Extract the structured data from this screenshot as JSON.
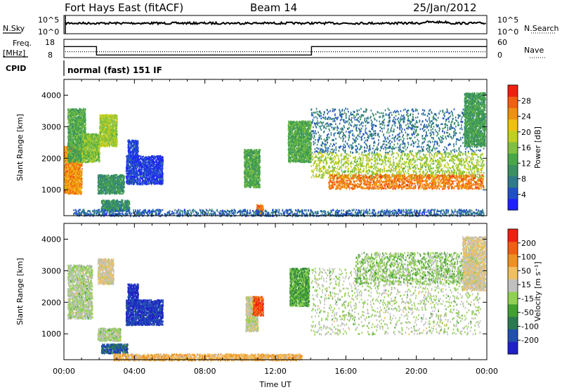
{
  "header": {
    "station": "Fort Hays East (fitACF)",
    "beam": "Beam 14",
    "date": "25/Jan/2012"
  },
  "noise_panel": {
    "left_label": "N.Sky",
    "right_label": "N.Search",
    "y_ticks_left": [
      "10^5",
      "10^0"
    ],
    "y_ticks_right": [
      "10^5",
      "10^0"
    ]
  },
  "freq_panel": {
    "left_label_1": "Freq.",
    "left_label_2": "[MHz]",
    "right_label": "Nave",
    "y_ticks_left": [
      "18",
      "8"
    ],
    "y_ticks_right": [
      "60",
      "0"
    ],
    "freq_steps": [
      [
        0,
        14.8
      ],
      [
        1.85,
        14.8
      ],
      [
        1.85,
        10.2
      ],
      [
        14.05,
        10.2
      ],
      [
        14.05,
        14.8
      ],
      [
        24,
        14.8
      ]
    ],
    "nave_level": 24
  },
  "cpid": {
    "label": "CPID",
    "mode": "normal (fast) 151 IF"
  },
  "chart_data": [
    {
      "type": "heatmap",
      "name": "power",
      "ylabel": "Slant Range [km]",
      "xlabel": "",
      "ylim": [
        180,
        4500
      ],
      "xlim": [
        0,
        24
      ],
      "yticks": [
        1000,
        2000,
        3000,
        4000
      ],
      "colorbar_label": "Power [dB]",
      "colorbar_ticks": [
        "28",
        "24",
        "20",
        "16",
        "12",
        "8",
        "4"
      ],
      "colorbar_colors": [
        "#2020ff",
        "#2050c8",
        "#2f7a8a",
        "#3a9060",
        "#48a848",
        "#80c040",
        "#c0d020",
        "#f0c010",
        "#f09010",
        "#f06010",
        "#ee2010"
      ],
      "regions": [
        {
          "t0": 0.0,
          "t1": 1.0,
          "r0": 900,
          "r1": 2400,
          "v": 0.8
        },
        {
          "t0": 0.2,
          "t1": 1.2,
          "r0": 1900,
          "r1": 3600,
          "v": 0.4
        },
        {
          "t0": 1.0,
          "t1": 2.0,
          "r0": 1900,
          "r1": 2800,
          "v": 0.5
        },
        {
          "t0": 2.0,
          "t1": 3.0,
          "r0": 2400,
          "r1": 3400,
          "v": 0.55
        },
        {
          "t0": 1.9,
          "t1": 3.4,
          "r0": 900,
          "r1": 1500,
          "v": 0.3
        },
        {
          "t0": 2.1,
          "t1": 3.7,
          "r0": 350,
          "r1": 700,
          "v": 0.3
        },
        {
          "t0": 3.6,
          "t1": 4.2,
          "r0": 1900,
          "r1": 2600,
          "v": 0.08
        },
        {
          "t0": 3.5,
          "t1": 5.6,
          "r0": 1200,
          "r1": 2100,
          "v": 0.06
        },
        {
          "t0": 10.2,
          "t1": 11.1,
          "r0": 1100,
          "r1": 2300,
          "v": 0.4
        },
        {
          "t0": 10.9,
          "t1": 11.3,
          "r0": 250,
          "r1": 550,
          "v": 0.85
        },
        {
          "t0": 12.7,
          "t1": 14.0,
          "r0": 1900,
          "r1": 3200,
          "v": 0.4
        },
        {
          "t0": 14.0,
          "t1": 23.8,
          "r0": 2200,
          "r1": 3600,
          "v": 0.2
        },
        {
          "t0": 14.0,
          "t1": 23.8,
          "r0": 1400,
          "r1": 2200,
          "v": 0.55
        },
        {
          "t0": 15.0,
          "t1": 23.8,
          "r0": 1050,
          "r1": 1500,
          "v": 0.85
        },
        {
          "t0": 22.7,
          "t1": 23.9,
          "r0": 2400,
          "r1": 4100,
          "v": 0.35
        },
        {
          "t0": 0.5,
          "t1": 23.8,
          "r0": 190,
          "r1": 400,
          "v": 0.15
        }
      ]
    },
    {
      "type": "heatmap",
      "name": "velocity",
      "ylabel": "Slant Range [km]",
      "xlabel": "Time UT",
      "ylim": [
        180,
        4500
      ],
      "xlim": [
        0,
        24
      ],
      "yticks": [
        1000,
        2000,
        3000,
        4000
      ],
      "xticks": [
        "00:00",
        "04:00",
        "08:00",
        "12:00",
        "16:00",
        "20:00",
        "00:00"
      ],
      "colorbar_label": "Velocity [m s⁻¹]",
      "colorbar_ticks": [
        "200",
        "100",
        "50",
        "15",
        "-15",
        "-50",
        "-100",
        "-200"
      ],
      "colorbar_colors": [
        "#2020c8",
        "#2050b0",
        "#2a7a50",
        "#40a030",
        "#90d050",
        "#c0c0c0",
        "#f0c060",
        "#f09020",
        "#f06010",
        "#ee2010"
      ],
      "regions": [
        {
          "t0": 0.2,
          "t1": 1.6,
          "r0": 1500,
          "r1": 3200,
          "v": 0.5
        },
        {
          "t0": 1.9,
          "t1": 2.8,
          "r0": 2600,
          "r1": 3400,
          "v": 0.6
        },
        {
          "t0": 1.9,
          "t1": 3.2,
          "r0": 800,
          "r1": 1200,
          "v": 0.5
        },
        {
          "t0": 2.1,
          "t1": 3.6,
          "r0": 400,
          "r1": 700,
          "v": 0.15
        },
        {
          "t0": 3.6,
          "t1": 4.2,
          "r0": 1900,
          "r1": 2600,
          "v": 0.02
        },
        {
          "t0": 3.5,
          "t1": 5.6,
          "r0": 1300,
          "r1": 2100,
          "v": 0.05
        },
        {
          "t0": 10.3,
          "t1": 11.0,
          "r0": 1100,
          "r1": 2200,
          "v": 0.55
        },
        {
          "t0": 10.7,
          "t1": 11.3,
          "r0": 1600,
          "r1": 2200,
          "v": 0.9
        },
        {
          "t0": 12.8,
          "t1": 13.9,
          "r0": 1900,
          "r1": 3100,
          "v": 0.35
        },
        {
          "t0": 14.0,
          "t1": 23.6,
          "r0": 1000,
          "r1": 3100,
          "v": 0.5
        },
        {
          "t0": 16.5,
          "t1": 23.6,
          "r0": 2600,
          "r1": 3600,
          "v": 0.45
        },
        {
          "t0": 22.6,
          "t1": 23.9,
          "r0": 2400,
          "r1": 4100,
          "v": 0.6
        },
        {
          "t0": 2.8,
          "t1": 13.5,
          "r0": 180,
          "r1": 380,
          "v": 0.7
        }
      ]
    }
  ]
}
